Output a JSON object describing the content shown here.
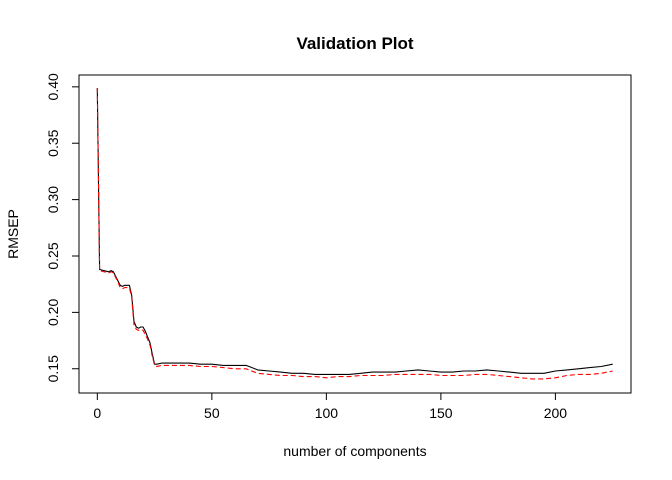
{
  "chart_data": {
    "type": "line",
    "title": "Validation Plot",
    "xlabel": "number of components",
    "ylabel": "RMSEP",
    "xlim": [
      -8,
      233
    ],
    "ylim": [
      0.1285,
      0.4105
    ],
    "xticks": [
      0,
      50,
      100,
      150,
      200
    ],
    "xtick_labels": [
      "0",
      "50",
      "100",
      "150",
      "200"
    ],
    "yticks": [
      0.15,
      0.2,
      0.25,
      0.3,
      0.35,
      0.4
    ],
    "ytick_labels": [
      "0.15",
      "0.20",
      "0.25",
      "0.30",
      "0.35",
      "0.40"
    ],
    "grid": false,
    "legend": "none",
    "series": [
      {
        "style": "solid",
        "color": "#000000",
        "x": [
          0,
          1,
          3,
          5,
          6,
          7,
          8,
          9,
          10,
          11,
          12,
          14,
          15,
          16,
          17,
          18,
          19,
          20,
          21,
          22,
          23,
          24,
          25,
          26,
          28,
          30,
          35,
          40,
          45,
          50,
          55,
          60,
          65,
          70,
          75,
          80,
          85,
          90,
          95,
          100,
          105,
          110,
          115,
          120,
          125,
          130,
          135,
          140,
          145,
          150,
          155,
          160,
          165,
          170,
          175,
          180,
          185,
          190,
          195,
          200,
          205,
          210,
          215,
          220,
          225
        ],
        "y": [
          0.399,
          0.238,
          0.237,
          0.236,
          0.237,
          0.236,
          0.232,
          0.228,
          0.224,
          0.223,
          0.224,
          0.224,
          0.215,
          0.192,
          0.187,
          0.186,
          0.187,
          0.187,
          0.183,
          0.178,
          0.173,
          0.163,
          0.154,
          0.154,
          0.155,
          0.155,
          0.155,
          0.155,
          0.154,
          0.154,
          0.153,
          0.153,
          0.153,
          0.149,
          0.148,
          0.147,
          0.146,
          0.146,
          0.145,
          0.145,
          0.145,
          0.145,
          0.146,
          0.147,
          0.147,
          0.147,
          0.148,
          0.149,
          0.148,
          0.147,
          0.147,
          0.148,
          0.148,
          0.149,
          0.148,
          0.147,
          0.146,
          0.146,
          0.146,
          0.148,
          0.149,
          0.15,
          0.151,
          0.152,
          0.154
        ]
      },
      {
        "style": "dashed",
        "color": "#ff0000",
        "x": [
          0,
          1,
          3,
          5,
          6,
          7,
          8,
          9,
          10,
          11,
          12,
          14,
          15,
          16,
          17,
          18,
          19,
          20,
          21,
          22,
          23,
          24,
          25,
          26,
          28,
          30,
          35,
          40,
          45,
          50,
          55,
          60,
          65,
          70,
          75,
          80,
          85,
          90,
          95,
          100,
          105,
          110,
          115,
          120,
          125,
          130,
          135,
          140,
          145,
          150,
          155,
          160,
          165,
          170,
          175,
          180,
          185,
          190,
          195,
          200,
          205,
          210,
          215,
          220,
          225
        ],
        "y": [
          0.399,
          0.237,
          0.236,
          0.235,
          0.236,
          0.235,
          0.231,
          0.227,
          0.222,
          0.221,
          0.222,
          0.222,
          0.213,
          0.189,
          0.185,
          0.184,
          0.185,
          0.184,
          0.18,
          0.176,
          0.171,
          0.161,
          0.153,
          0.152,
          0.153,
          0.153,
          0.153,
          0.153,
          0.152,
          0.152,
          0.151,
          0.15,
          0.15,
          0.146,
          0.145,
          0.144,
          0.144,
          0.143,
          0.143,
          0.142,
          0.143,
          0.143,
          0.144,
          0.144,
          0.144,
          0.145,
          0.145,
          0.145,
          0.145,
          0.144,
          0.144,
          0.144,
          0.145,
          0.145,
          0.144,
          0.143,
          0.142,
          0.141,
          0.141,
          0.142,
          0.144,
          0.145,
          0.145,
          0.146,
          0.148
        ]
      }
    ]
  }
}
